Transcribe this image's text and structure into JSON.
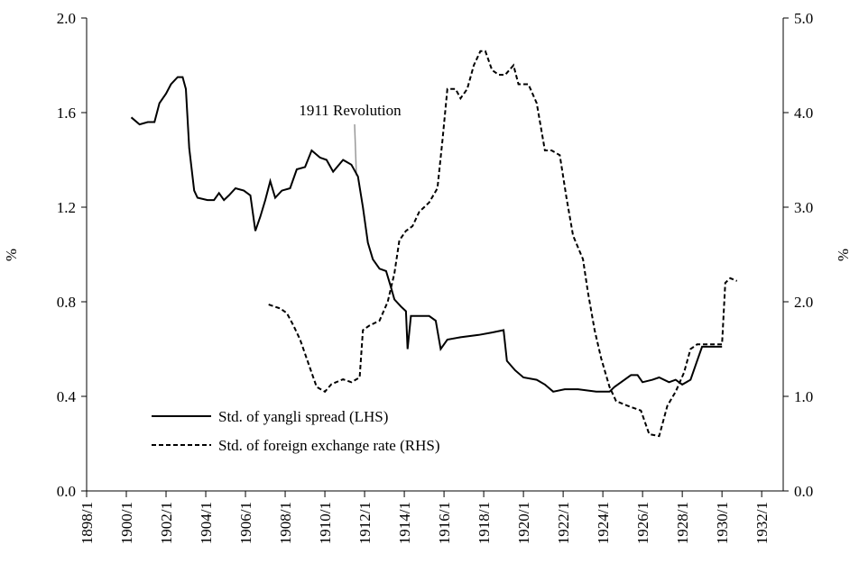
{
  "chart_data": {
    "type": "line",
    "annotation": "1911 Revolution",
    "ylabel": "%",
    "y2label": "%",
    "xlim": [
      "1898/1",
      "1933/2"
    ],
    "xticks": [
      "1898/1",
      "1900/1",
      "1902/1",
      "1904/1",
      "1906/1",
      "1908/1",
      "1910/1",
      "1912/1",
      "1914/1",
      "1916/1",
      "1918/1",
      "1920/1",
      "1922/1",
      "1924/1",
      "1926/1",
      "1928/1",
      "1930/1",
      "1932/1"
    ],
    "ylim": [
      0,
      2
    ],
    "yticks": [
      {
        "value": 0,
        "label": "0.0"
      },
      {
        "value": 0.4,
        "label": "0.4"
      },
      {
        "value": 0.8,
        "label": "0.8"
      },
      {
        "value": 1.2,
        "label": "1.2"
      },
      {
        "value": 1.6,
        "label": "1.6"
      },
      {
        "value": 2,
        "label": "2.0"
      }
    ],
    "y2lim": [
      0,
      5
    ],
    "y2ticks": [
      {
        "value": 0,
        "label": "0.0"
      },
      {
        "value": 1,
        "label": "1.0"
      },
      {
        "value": 2,
        "label": "2.0"
      },
      {
        "value": 3,
        "label": "3.0"
      },
      {
        "value": 4,
        "label": "4.0"
      },
      {
        "value": 5,
        "label": "5.0"
      }
    ],
    "grid": false,
    "legend": "lower left",
    "series": [
      {
        "name": "Std. of yangli spread (LHS)",
        "color": "#000000",
        "style": "solid",
        "axis": "y",
        "x": [
          "1900/4",
          "1900/9",
          "1901/2",
          "1901/6",
          "1901/9",
          "1902/1",
          "1902/4",
          "1902/8",
          "1902/11",
          "1903/1",
          "1903/3",
          "1903/6",
          "1903/8",
          "1904/2",
          "1904/6",
          "1904/9",
          "1904/12",
          "1905/3",
          "1905/7",
          "1905/12",
          "1906/4",
          "1906/7",
          "1906/10",
          "1907/1",
          "1907/4",
          "1907/7",
          "1907/11",
          "1908/4",
          "1908/8",
          "1909/1",
          "1909/5",
          "1909/10",
          "1910/2",
          "1910/6",
          "1910/12",
          "1911/5",
          "1911/9",
          "1911/12",
          "1912/3",
          "1912/6",
          "1912/10",
          "1913/2",
          "1913/5",
          "1913/7",
          "1913/11",
          "1914/2",
          "1914/3",
          "1914/5",
          "1914/10",
          "1915/4",
          "1915/8",
          "1915/11",
          "1916/3",
          "1916/11",
          "1917/10",
          "1918/6",
          "1919/1",
          "1919/3",
          "1919/8",
          "1920/1",
          "1920/9",
          "1921/2",
          "1921/7",
          "1922/2",
          "1922/10",
          "1923/9",
          "1924/5",
          "1924/8",
          "1924/12",
          "1925/6",
          "1925/10",
          "1926/1",
          "1926/7",
          "1926/11",
          "1927/5",
          "1927/9",
          "1928/1",
          "1928/6",
          "1928/10",
          "1929/1",
          "1929/8",
          "1930/1"
        ],
        "values": [
          1.58,
          1.55,
          1.56,
          1.56,
          1.64,
          1.68,
          1.72,
          1.75,
          1.75,
          1.7,
          1.45,
          1.27,
          1.24,
          1.23,
          1.23,
          1.26,
          1.23,
          1.25,
          1.28,
          1.27,
          1.25,
          1.1,
          1.16,
          1.23,
          1.31,
          1.24,
          1.27,
          1.28,
          1.36,
          1.37,
          1.44,
          1.41,
          1.4,
          1.35,
          1.4,
          1.38,
          1.33,
          1.2,
          1.05,
          0.98,
          0.94,
          0.93,
          0.86,
          0.81,
          0.78,
          0.76,
          0.6,
          0.74,
          0.74,
          0.74,
          0.72,
          0.6,
          0.64,
          0.65,
          0.66,
          0.67,
          0.68,
          0.55,
          0.51,
          0.48,
          0.47,
          0.45,
          0.42,
          0.43,
          0.43,
          0.42,
          0.42,
          0.44,
          0.46,
          0.49,
          0.49,
          0.46,
          0.47,
          0.48,
          0.46,
          0.47,
          0.45,
          0.47,
          0.55,
          0.61,
          0.61,
          0.61
        ]
      },
      {
        "name": "Std. of foreign exchange rate (RHS)",
        "color": "#000000",
        "style": "dashed",
        "axis": "y2",
        "x": [
          "1907/3",
          "1907/10",
          "1908/2",
          "1908/6",
          "1908/10",
          "1909/2",
          "1909/5",
          "1909/8",
          "1910/1",
          "1910/5",
          "1910/12",
          "1911/5",
          "1911/10",
          "1911/12",
          "1912/4",
          "1912/10",
          "1913/3",
          "1913/7",
          "1913/10",
          "1914/2",
          "1914/6",
          "1914/10",
          "1915/4",
          "1915/9",
          "1915/12",
          "1916/3",
          "1916/8",
          "1916/11",
          "1917/3",
          "1917/7",
          "1917/11",
          "1918/2",
          "1918/6",
          "1918/10",
          "1919/2",
          "1919/7",
          "1919/10",
          "1920/4",
          "1920/9",
          "1921/2",
          "1921/6",
          "1921/11",
          "1922/3",
          "1922/7",
          "1923/1",
          "1923/4",
          "1923/8",
          "1923/12",
          "1924/5",
          "1924/9",
          "1925/4",
          "1925/12",
          "1926/5",
          "1926/11",
          "1927/4",
          "1927/9",
          "1928/2",
          "1928/6",
          "1928/10",
          "1929/8",
          "1930/1",
          "1930/3",
          "1930/6",
          "1930/10"
        ],
        "values": [
          1.97,
          1.93,
          1.88,
          1.75,
          1.6,
          1.4,
          1.25,
          1.1,
          1.05,
          1.13,
          1.18,
          1.15,
          1.2,
          1.7,
          1.75,
          1.8,
          2.0,
          2.3,
          2.65,
          2.75,
          2.8,
          2.95,
          3.05,
          3.2,
          3.7,
          4.25,
          4.25,
          4.15,
          4.25,
          4.5,
          4.65,
          4.65,
          4.45,
          4.4,
          4.4,
          4.5,
          4.3,
          4.3,
          4.1,
          3.6,
          3.6,
          3.55,
          3.1,
          2.7,
          2.45,
          2.1,
          1.7,
          1.4,
          1.1,
          0.95,
          0.9,
          0.85,
          0.6,
          0.58,
          0.9,
          1.05,
          1.25,
          1.5,
          1.55,
          1.55,
          1.55,
          2.2,
          2.25,
          2.22
        ]
      }
    ]
  }
}
